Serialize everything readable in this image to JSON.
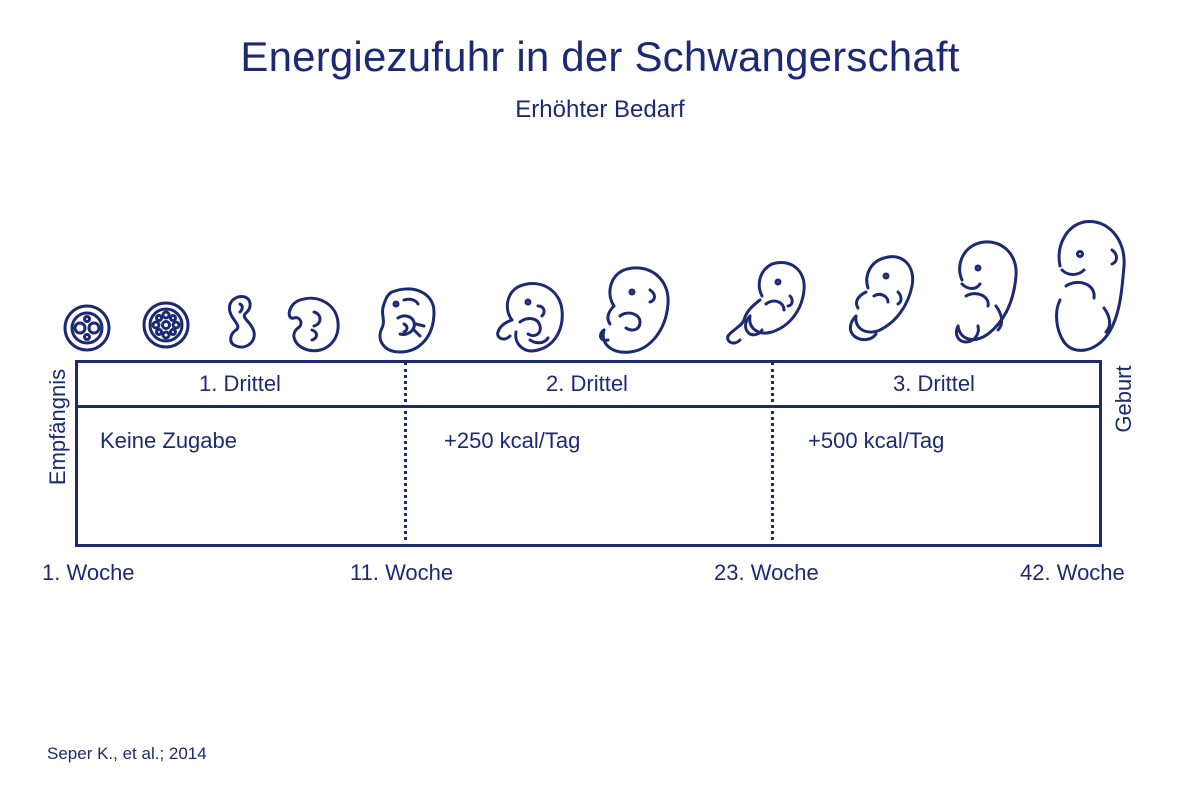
{
  "title": "Energiezufuhr in der Schwangerschaft",
  "subtitle": "Erhöhter Bedarf",
  "start_label": "Empfängnis",
  "end_label": "Geburt",
  "trimesters": [
    {
      "label": "1. Drittel",
      "energy": "Keine Zugabe"
    },
    {
      "label": "2. Drittel",
      "energy": "+250 kcal/Tag"
    },
    {
      "label": "3. Drittel",
      "energy": "+500 kcal/Tag"
    }
  ],
  "weeks": [
    "1. Woche",
    "11. Woche",
    "23. Woche",
    "42. Woche"
  ],
  "source": "Seper K., et al.; 2014",
  "colors": {
    "primary": "#1c2a73",
    "background": "#ffffff"
  }
}
